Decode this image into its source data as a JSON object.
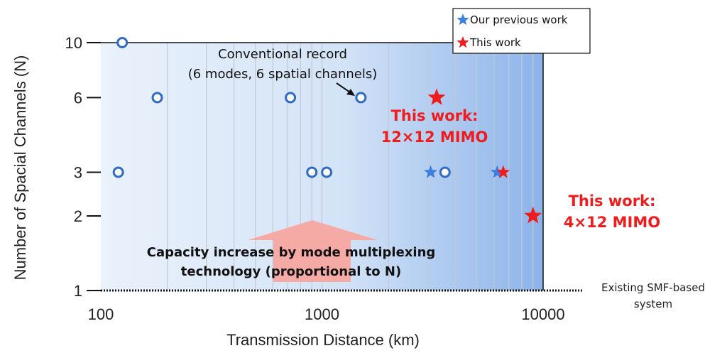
{
  "chart_data": {
    "type": "scatter",
    "xlabel": "Transmission Distance (km)",
    "ylabel": "Number of Spacial Channels (N)",
    "x_scale": "log",
    "y_scale": "log",
    "xlim": [
      100,
      10000
    ],
    "ylim": [
      1,
      10
    ],
    "x_ticks": [
      100,
      1000,
      10000
    ],
    "x_tick_labels": [
      "100",
      "1000",
      "10000"
    ],
    "y_ticks": [
      1,
      2,
      3,
      6,
      10
    ],
    "y_tick_labels": [
      "1",
      "2",
      "3",
      "6",
      "10"
    ],
    "grid": "vertical minor lines",
    "legend_position": "top-right",
    "series": [
      {
        "name": "",
        "marker": "open-circle",
        "color": "#2f6dc4",
        "points": [
          {
            "x": 125,
            "y": 10
          },
          {
            "x": 180,
            "y": 6
          },
          {
            "x": 720,
            "y": 6
          },
          {
            "x": 1500,
            "y": 6
          },
          {
            "x": 120,
            "y": 3
          },
          {
            "x": 900,
            "y": 3
          },
          {
            "x": 1050,
            "y": 3
          },
          {
            "x": 3600,
            "y": 3
          }
        ]
      },
      {
        "name": "Our previous work",
        "marker": "star",
        "color": "#3b7fe0",
        "points": [
          {
            "x": 3100,
            "y": 3
          },
          {
            "x": 6200,
            "y": 3
          }
        ]
      },
      {
        "name": "This work",
        "marker": "star",
        "color": "#ee1c1c",
        "points": [
          {
            "x": 3300,
            "y": 6
          },
          {
            "x": 6600,
            "y": 3
          },
          {
            "x": 9000,
            "y": 2
          }
        ]
      }
    ],
    "annotations": {
      "conventional_line1": "Conventional record",
      "conventional_line2": "(6 modes, 6 spatial channels)",
      "work12_line1": "This work:",
      "work12_line2": "12×12 MIMO",
      "work4_line1": "This work:",
      "work4_line2": "4×12 MIMO",
      "capacity_line1": "Capacity increase by mode multiplexing",
      "capacity_line2": "technology (proportional to N)",
      "smf_line1": "Existing SMF-based",
      "smf_line2": "system"
    },
    "colors": {
      "plot_bg_start": "#eaf2fb",
      "plot_bg_end": "#8cb3ea",
      "arrow": "#f6aaa6",
      "circle": "#2f6dc4",
      "blue_star": "#3b7fe0",
      "red_star": "#ee1c1c",
      "red_text": "#ee1c1c"
    }
  }
}
